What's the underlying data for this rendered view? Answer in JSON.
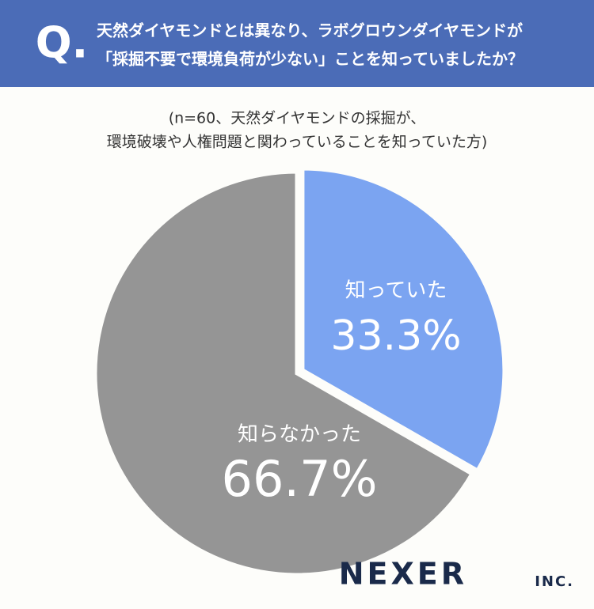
{
  "chart_data": {
    "type": "pie",
    "question_marker": "Q.",
    "title": [
      "天然ダイヤモンドとは異なり、ラボグロウンダイヤモンドが",
      "「採掘不要で環境負荷が少ない」ことを知っていましたか？"
    ],
    "subtitle": [
      "(n=60、天然ダイヤモンドの採掘が、",
      "環境破壊や人権問題と関わっていることを知っていた方)"
    ],
    "categories": [
      "知っていた",
      "知らなかった"
    ],
    "values": [
      33.3,
      66.7
    ],
    "value_labels": [
      "33.3%",
      "66.7%"
    ],
    "colors": [
      "#7ba4f1",
      "#959595"
    ],
    "logo": [
      "NEXER",
      "INC."
    ]
  }
}
